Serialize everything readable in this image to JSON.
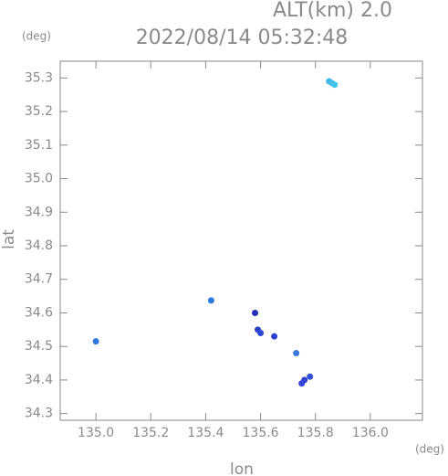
{
  "chart_data": {
    "type": "scatter",
    "title": "2022/08/14 05:32:48",
    "subtitle": "ALT(km) 2.0",
    "x_label": "lon",
    "y_label": "lat",
    "x_unit": "(deg)",
    "y_unit": "(deg)",
    "x": [
      135.85,
      135.87,
      135.86,
      135.42,
      135.0,
      135.58,
      135.59,
      135.6,
      135.65,
      135.73,
      135.76,
      135.75,
      135.78
    ],
    "y": [
      35.29,
      35.28,
      35.285,
      34.637,
      34.515,
      34.6,
      34.55,
      34.54,
      34.53,
      34.48,
      34.4,
      34.39,
      34.41
    ],
    "colors": [
      "#3fb8e8",
      "#40c8ec",
      "#45c0e6",
      "#2f78e0",
      "#2f78e0",
      "#2030b8",
      "#2840c8",
      "#2a48d0",
      "#3040d0",
      "#3878e0",
      "#3040d0",
      "#3545d8",
      "#3050d8"
    ],
    "xlim": [
      134.87,
      136.19
    ],
    "ylim": [
      34.28,
      35.35
    ],
    "xticks": [
      {
        "value": 135.0,
        "label": "135.0"
      },
      135.2,
      135.4,
      135.6,
      135.8,
      {
        "value": 136.0,
        "label": "136.0"
      }
    ],
    "yticks": [
      34.3,
      34.4,
      34.5,
      34.6,
      34.7,
      34.8,
      34.9,
      {
        "value": 35.0,
        "label": "35.0"
      },
      35.1,
      35.2,
      35.3
    ]
  }
}
